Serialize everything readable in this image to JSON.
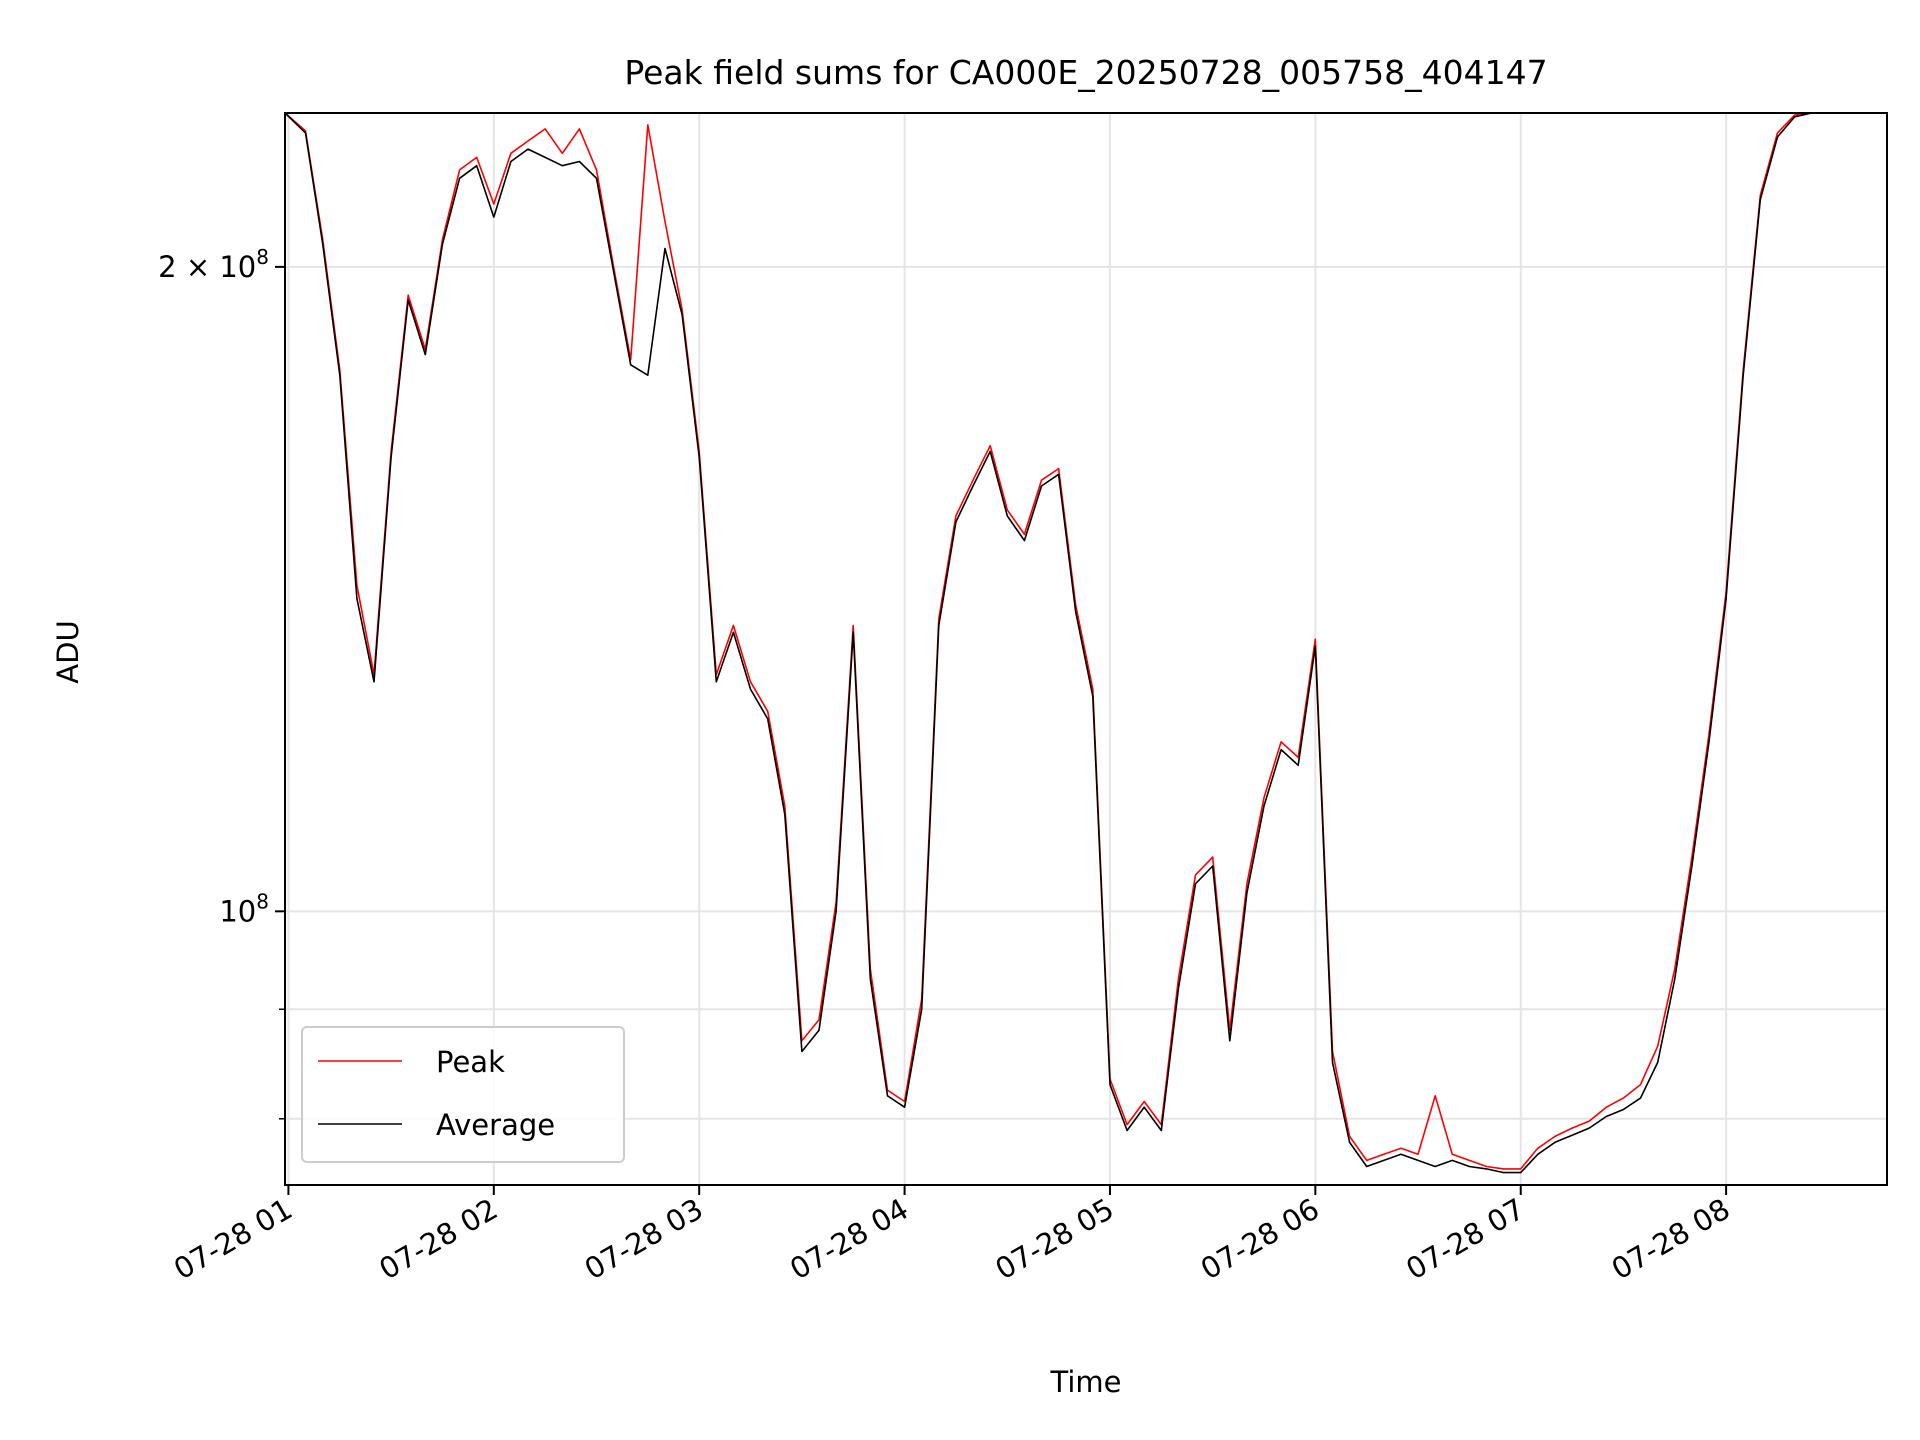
{
  "chart_data": {
    "type": "line",
    "title": "Peak field sums for CA000E_20250728_005758_404147",
    "xlabel": "Time",
    "ylabel": "ADU",
    "y_scale": "log",
    "xlim": [
      "07-28 00:59",
      "07-28 08:47"
    ],
    "ylim": [
      74500000,
      236000000
    ],
    "x_ticks": [
      "07-28 01",
      "07-28 02",
      "07-28 03",
      "07-28 04",
      "07-28 05",
      "07-28 06",
      "07-28 07",
      "07-28 08"
    ],
    "y_major_ticks": [
      {
        "value": 100000000,
        "base": "10",
        "exp": "8",
        "mult": ""
      },
      {
        "value": 200000000,
        "base": "10",
        "exp": "8",
        "mult": "2 × "
      }
    ],
    "y_minor_ticks": [
      80000000,
      90000000
    ],
    "grid": true,
    "legend_position": "lower-left",
    "colors": {
      "Peak": "#ff0000",
      "Average": "#000000"
    },
    "series": [
      {
        "name": "Average",
        "color": "#000000",
        "points": [
          [
            "07-28 00:59",
            236000000
          ],
          [
            "07-28 01:05",
            231000000
          ],
          [
            "07-28 01:10",
            205000000
          ],
          [
            "07-28 01:15",
            178000000
          ],
          [
            "07-28 01:20",
            140000000
          ],
          [
            "07-28 01:25",
            128000000
          ],
          [
            "07-28 01:30",
            163000000
          ],
          [
            "07-28 01:35",
            193000000
          ],
          [
            "07-28 01:40",
            182000000
          ],
          [
            "07-28 01:45",
            205000000
          ],
          [
            "07-28 01:50",
            220000000
          ],
          [
            "07-28 01:55",
            223000000
          ],
          [
            "07-28 02:00",
            211000000
          ],
          [
            "07-28 02:05",
            224000000
          ],
          [
            "07-28 02:10",
            227000000
          ],
          [
            "07-28 02:15",
            225000000
          ],
          [
            "07-28 02:20",
            223000000
          ],
          [
            "07-28 02:25",
            224000000
          ],
          [
            "07-28 02:30",
            220000000
          ],
          [
            "07-28 02:35",
            199000000
          ],
          [
            "07-28 02:40",
            180000000
          ],
          [
            "07-28 02:45",
            178000000
          ],
          [
            "07-28 02:50",
            204000000
          ],
          [
            "07-28 02:55",
            190000000
          ],
          [
            "07-28 03:00",
            163000000
          ],
          [
            "07-28 03:05",
            128000000
          ],
          [
            "07-28 03:10",
            135000000
          ],
          [
            "07-28 03:15",
            127000000
          ],
          [
            "07-28 03:20",
            123000000
          ],
          [
            "07-28 03:25",
            111000000
          ],
          [
            "07-28 03:30",
            86000000
          ],
          [
            "07-28 03:35",
            88000000
          ],
          [
            "07-28 03:40",
            100000000
          ],
          [
            "07-28 03:45",
            135000000
          ],
          [
            "07-28 03:50",
            93000000
          ],
          [
            "07-28 03:55",
            82000000
          ],
          [
            "07-28 04:00",
            81000000
          ],
          [
            "07-28 04:05",
            90000000
          ],
          [
            "07-28 04:10",
            136000000
          ],
          [
            "07-28 04:15",
            152000000
          ],
          [
            "07-28 04:20",
            158000000
          ],
          [
            "07-28 04:25",
            164000000
          ],
          [
            "07-28 04:30",
            153000000
          ],
          [
            "07-28 04:35",
            149000000
          ],
          [
            "07-28 04:40",
            158000000
          ],
          [
            "07-28 04:45",
            160000000
          ],
          [
            "07-28 04:50",
            138000000
          ],
          [
            "07-28 04:55",
            126000000
          ],
          [
            "07-28 05:00",
            83000000
          ],
          [
            "07-28 05:05",
            79000000
          ],
          [
            "07-28 05:10",
            81000000
          ],
          [
            "07-28 05:15",
            79000000
          ],
          [
            "07-28 05:20",
            92000000
          ],
          [
            "07-28 05:25",
            103000000
          ],
          [
            "07-28 05:30",
            105000000
          ],
          [
            "07-28 05:35",
            87000000
          ],
          [
            "07-28 05:40",
            102000000
          ],
          [
            "07-28 05:45",
            112000000
          ],
          [
            "07-28 05:50",
            119000000
          ],
          [
            "07-28 05:55",
            117000000
          ],
          [
            "07-28 06:00",
            133000000
          ],
          [
            "07-28 06:05",
            85000000
          ],
          [
            "07-28 06:10",
            78000000
          ],
          [
            "07-28 06:15",
            76000000
          ],
          [
            "07-28 06:20",
            76500000
          ],
          [
            "07-28 06:25",
            77000000
          ],
          [
            "07-28 06:30",
            76500000
          ],
          [
            "07-28 06:35",
            76000000
          ],
          [
            "07-28 06:40",
            76500000
          ],
          [
            "07-28 06:45",
            76000000
          ],
          [
            "07-28 06:50",
            75800000
          ],
          [
            "07-28 06:55",
            75500000
          ],
          [
            "07-28 07:00",
            75500000
          ],
          [
            "07-28 07:05",
            77000000
          ],
          [
            "07-28 07:10",
            78000000
          ],
          [
            "07-28 07:15",
            78600000
          ],
          [
            "07-28 07:20",
            79200000
          ],
          [
            "07-28 07:25",
            80200000
          ],
          [
            "07-28 07:30",
            80800000
          ],
          [
            "07-28 07:35",
            81800000
          ],
          [
            "07-28 07:40",
            85000000
          ],
          [
            "07-28 07:45",
            93000000
          ],
          [
            "07-28 07:50",
            105000000
          ],
          [
            "07-28 07:55",
            120000000
          ],
          [
            "07-28 08:00",
            140000000
          ],
          [
            "07-28 08:05",
            178000000
          ],
          [
            "07-28 08:10",
            215000000
          ],
          [
            "07-28 08:15",
            230000000
          ],
          [
            "07-28 08:20",
            235000000
          ],
          [
            "07-28 08:25",
            236000000
          ],
          [
            "07-28 08:30",
            236000000
          ],
          [
            "07-28 08:35",
            236000000
          ],
          [
            "07-28 08:40",
            236000000
          ],
          [
            "07-28 08:47",
            236000000
          ]
        ]
      },
      {
        "name": "Peak",
        "color": "#ff0000",
        "points": [
          [
            "07-28 00:59",
            236000000
          ],
          [
            "07-28 01:05",
            231500000
          ],
          [
            "07-28 01:10",
            206000000
          ],
          [
            "07-28 01:15",
            179000000
          ],
          [
            "07-28 01:20",
            142000000
          ],
          [
            "07-28 01:25",
            129000000
          ],
          [
            "07-28 01:30",
            164000000
          ],
          [
            "07-28 01:35",
            194000000
          ],
          [
            "07-28 01:40",
            183000000
          ],
          [
            "07-28 01:45",
            206000000
          ],
          [
            "07-28 01:50",
            222000000
          ],
          [
            "07-28 01:55",
            225000000
          ],
          [
            "07-28 02:00",
            214000000
          ],
          [
            "07-28 02:05",
            226000000
          ],
          [
            "07-28 02:10",
            229000000
          ],
          [
            "07-28 02:15",
            232000000
          ],
          [
            "07-28 02:20",
            226000000
          ],
          [
            "07-28 02:25",
            232000000
          ],
          [
            "07-28 02:30",
            222000000
          ],
          [
            "07-28 02:35",
            200000000
          ],
          [
            "07-28 02:40",
            181000000
          ],
          [
            "07-28 02:45",
            233000000
          ],
          [
            "07-28 02:50",
            210000000
          ],
          [
            "07-28 02:55",
            191000000
          ],
          [
            "07-28 03:00",
            164000000
          ],
          [
            "07-28 03:05",
            129000000
          ],
          [
            "07-28 03:10",
            136000000
          ],
          [
            "07-28 03:15",
            128000000
          ],
          [
            "07-28 03:20",
            124000000
          ],
          [
            "07-28 03:25",
            112000000
          ],
          [
            "07-28 03:30",
            87000000
          ],
          [
            "07-28 03:35",
            89000000
          ],
          [
            "07-28 03:40",
            101000000
          ],
          [
            "07-28 03:45",
            136000000
          ],
          [
            "07-28 03:50",
            94000000
          ],
          [
            "07-28 03:55",
            82500000
          ],
          [
            "07-28 04:00",
            81500000
          ],
          [
            "07-28 04:05",
            91000000
          ],
          [
            "07-28 04:10",
            137000000
          ],
          [
            "07-28 04:15",
            153000000
          ],
          [
            "07-28 04:20",
            159000000
          ],
          [
            "07-28 04:25",
            165000000
          ],
          [
            "07-28 04:30",
            154000000
          ],
          [
            "07-28 04:35",
            150000000
          ],
          [
            "07-28 04:40",
            159000000
          ],
          [
            "07-28 04:45",
            161000000
          ],
          [
            "07-28 04:50",
            139000000
          ],
          [
            "07-28 04:55",
            127000000
          ],
          [
            "07-28 05:00",
            83500000
          ],
          [
            "07-28 05:05",
            79500000
          ],
          [
            "07-28 05:10",
            81500000
          ],
          [
            "07-28 05:15",
            79500000
          ],
          [
            "07-28 05:20",
            93000000
          ],
          [
            "07-28 05:25",
            104000000
          ],
          [
            "07-28 05:30",
            106000000
          ],
          [
            "07-28 05:35",
            88000000
          ],
          [
            "07-28 05:40",
            103000000
          ],
          [
            "07-28 05:45",
            113000000
          ],
          [
            "07-28 05:50",
            120000000
          ],
          [
            "07-28 05:55",
            118000000
          ],
          [
            "07-28 06:00",
            134000000
          ],
          [
            "07-28 06:05",
            86000000
          ],
          [
            "07-28 06:10",
            78500000
          ],
          [
            "07-28 06:15",
            76500000
          ],
          [
            "07-28 06:20",
            77000000
          ],
          [
            "07-28 06:25",
            77500000
          ],
          [
            "07-28 06:30",
            77000000
          ],
          [
            "07-28 06:35",
            82000000
          ],
          [
            "07-28 06:40",
            77000000
          ],
          [
            "07-28 06:45",
            76500000
          ],
          [
            "07-28 06:50",
            76000000
          ],
          [
            "07-28 06:55",
            75800000
          ],
          [
            "07-28 07:00",
            75800000
          ],
          [
            "07-28 07:05",
            77500000
          ],
          [
            "07-28 07:10",
            78500000
          ],
          [
            "07-28 07:15",
            79200000
          ],
          [
            "07-28 07:20",
            79800000
          ],
          [
            "07-28 07:25",
            81000000
          ],
          [
            "07-28 07:30",
            81800000
          ],
          [
            "07-28 07:35",
            83000000
          ],
          [
            "07-28 07:40",
            86500000
          ],
          [
            "07-28 07:45",
            94000000
          ],
          [
            "07-28 07:50",
            106000000
          ],
          [
            "07-28 07:55",
            121000000
          ],
          [
            "07-28 08:00",
            141000000
          ],
          [
            "07-28 08:05",
            179000000
          ],
          [
            "07-28 08:10",
            216000000
          ],
          [
            "07-28 08:15",
            231000000
          ],
          [
            "07-28 08:20",
            235500000
          ],
          [
            "07-28 08:25",
            236000000
          ],
          [
            "07-28 08:30",
            236000000
          ],
          [
            "07-28 08:35",
            236000000
          ],
          [
            "07-28 08:40",
            236000000
          ],
          [
            "07-28 08:47",
            236000000
          ]
        ]
      }
    ]
  }
}
